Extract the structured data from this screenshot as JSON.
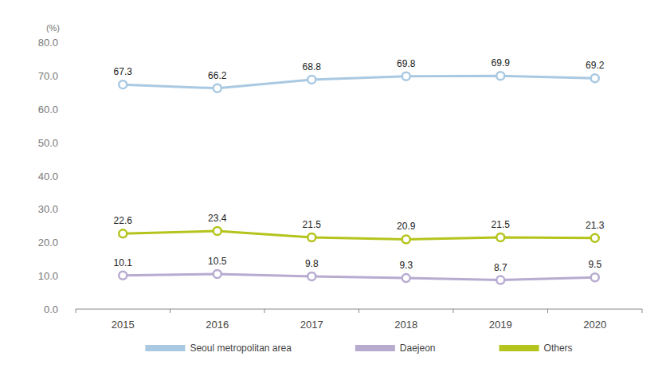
{
  "chart_data": {
    "type": "line",
    "ylabel": "(%)",
    "categories": [
      "2015",
      "2016",
      "2017",
      "2018",
      "2019",
      "2020"
    ],
    "series": [
      {
        "name": "Seoul metropolitan area",
        "color": "#a9c9e2",
        "marker": "circle",
        "values": [
          67.3,
          66.2,
          68.8,
          69.8,
          69.9,
          69.2
        ]
      },
      {
        "name": "Daejeon",
        "color": "#b7abd0",
        "marker": "circle",
        "values": [
          10.1,
          10.5,
          9.8,
          9.3,
          8.7,
          9.5
        ]
      },
      {
        "name": "Others",
        "color": "#b4c41c",
        "marker": "circle",
        "values": [
          22.6,
          23.4,
          21.5,
          20.9,
          21.5,
          21.3
        ]
      }
    ],
    "ylim": [
      0,
      80
    ],
    "yticks": [
      {
        "value": 0,
        "label": "0.0"
      },
      {
        "value": 10,
        "label": "10.0"
      },
      {
        "value": 20,
        "label": "20.0"
      },
      {
        "value": 30,
        "label": "30.0"
      },
      {
        "value": 40,
        "label": "40.0"
      },
      {
        "value": 50,
        "label": "50.0"
      },
      {
        "value": 60,
        "label": "60.0"
      },
      {
        "value": 70,
        "label": "70.0"
      },
      {
        "value": 80,
        "label": "80.0"
      }
    ],
    "grid": false,
    "legend": "bottom",
    "data_labels": true
  }
}
